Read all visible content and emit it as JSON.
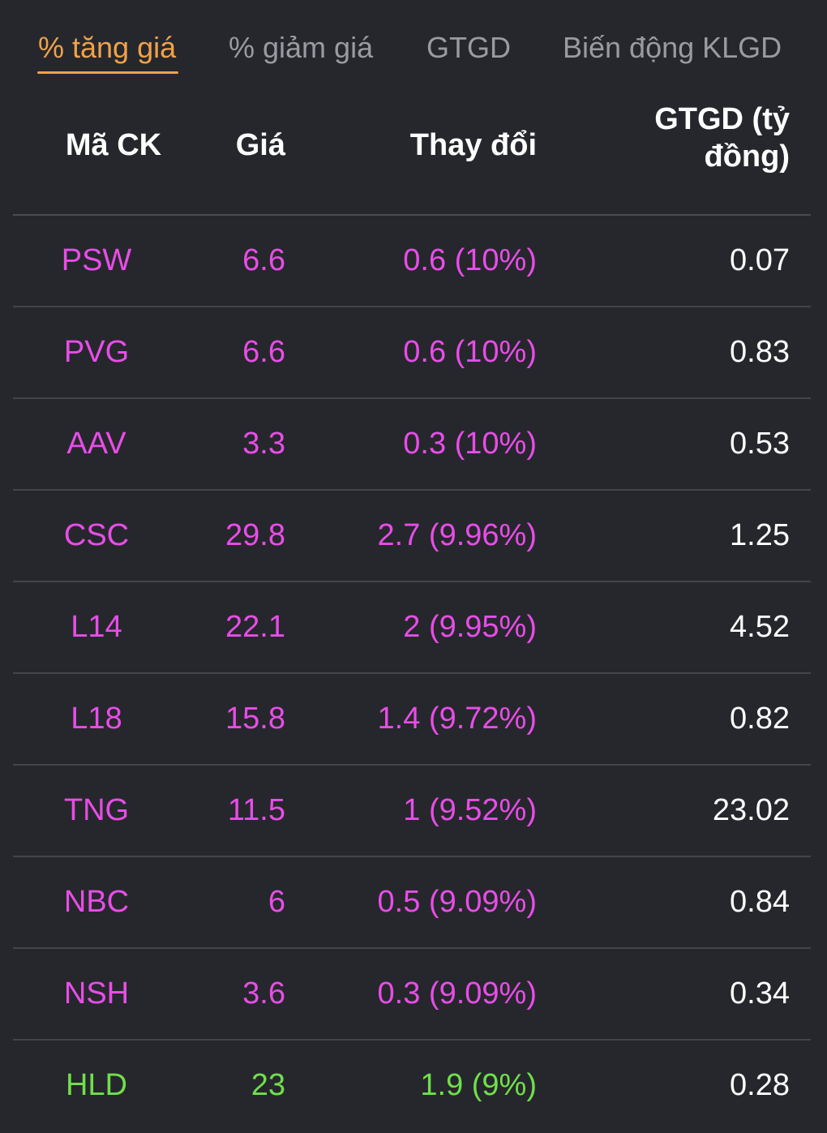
{
  "tabs": [
    {
      "label": "% tăng giá",
      "active": true
    },
    {
      "label": "% giảm giá",
      "active": false
    },
    {
      "label": "GTGD",
      "active": false
    },
    {
      "label": "Biến động KLGD",
      "active": false
    }
  ],
  "table": {
    "headers": {
      "code": "Mã CK",
      "price": "Giá",
      "change": "Thay đổi",
      "value_line1": "GTGD (tỷ",
      "value_line2": "đồng)"
    },
    "rows": [
      {
        "code": "PSW",
        "price": "6.6",
        "change": "0.6 (10%)",
        "value": "0.07",
        "status": "ceiling"
      },
      {
        "code": "PVG",
        "price": "6.6",
        "change": "0.6 (10%)",
        "value": "0.83",
        "status": "ceiling"
      },
      {
        "code": "AAV",
        "price": "3.3",
        "change": "0.3 (10%)",
        "value": "0.53",
        "status": "ceiling"
      },
      {
        "code": "CSC",
        "price": "29.8",
        "change": "2.7 (9.96%)",
        "value": "1.25",
        "status": "ceiling"
      },
      {
        "code": "L14",
        "price": "22.1",
        "change": "2 (9.95%)",
        "value": "4.52",
        "status": "ceiling"
      },
      {
        "code": "L18",
        "price": "15.8",
        "change": "1.4 (9.72%)",
        "value": "0.82",
        "status": "ceiling"
      },
      {
        "code": "TNG",
        "price": "11.5",
        "change": "1 (9.52%)",
        "value": "23.02",
        "status": "ceiling"
      },
      {
        "code": "NBC",
        "price": "6",
        "change": "0.5 (9.09%)",
        "value": "0.84",
        "status": "ceiling"
      },
      {
        "code": "NSH",
        "price": "3.6",
        "change": "0.3 (9.09%)",
        "value": "0.34",
        "status": "ceiling"
      },
      {
        "code": "HLD",
        "price": "23",
        "change": "1.9 (9%)",
        "value": "0.28",
        "status": "up"
      }
    ]
  },
  "colors": {
    "background": "#26272c",
    "active_tab": "#f0a24a",
    "inactive_tab": "#9a9ba1",
    "ceiling": "#e84de8",
    "up": "#6fe04a",
    "divider": "#44454b"
  }
}
